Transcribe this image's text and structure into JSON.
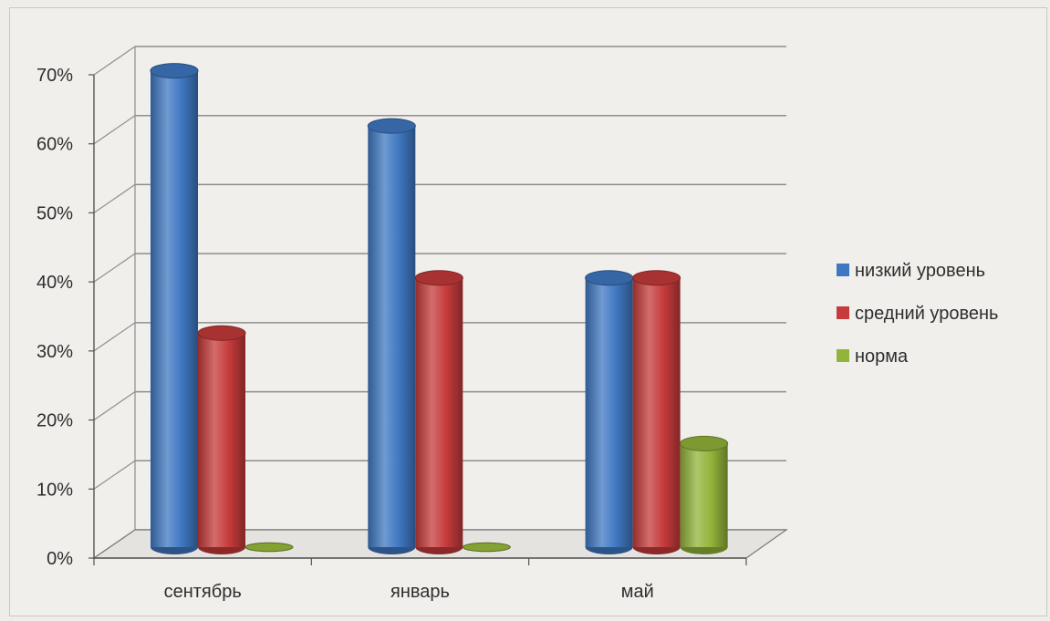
{
  "chart_data": {
    "type": "bar",
    "categories": [
      "сентябрь",
      "январь",
      "май"
    ],
    "series": [
      {
        "name": "низкий уровень",
        "values": [
          69,
          61,
          39
        ],
        "color": "#3f78c2"
      },
      {
        "name": "средний уровень",
        "values": [
          31,
          39,
          39
        ],
        "color": "#c63b3b"
      },
      {
        "name": "норма",
        "values": [
          0,
          0,
          15
        ],
        "color": "#93b43a"
      }
    ],
    "ylim": [
      0,
      70
    ],
    "yticks": [
      "0%",
      "10%",
      "20%",
      "30%",
      "40%",
      "50%",
      "60%",
      "70%"
    ],
    "grid": true,
    "legend_position": "right",
    "style": "3d-cylinder"
  }
}
